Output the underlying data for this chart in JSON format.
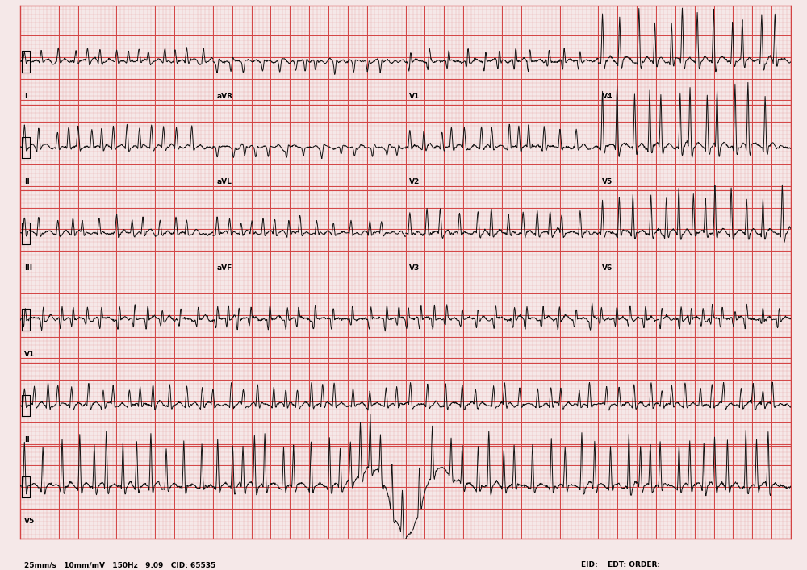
{
  "paper_color": "#f5e8e8",
  "grid_major_color": "#d44444",
  "grid_minor_color": "#e8aaaa",
  "ecg_color": "#111111",
  "border_color": "#cc3333",
  "footer_left": "25mm/s   10mm/mV   150Hz   9.09   CID: 65535",
  "footer_right": "EID:    EDT: ORDER:",
  "fig_width": 10.0,
  "fig_height": 7.07,
  "dpi": 100,
  "x_max": 200.0,
  "y_max": 120.0,
  "n_rows": 6,
  "row_labels": [
    [
      "I",
      "aVR",
      "V1",
      "V4"
    ],
    [
      "II",
      "aVL",
      "V2",
      "V5"
    ],
    [
      "III",
      "aVF",
      "V3",
      "V6"
    ],
    [
      "V1"
    ],
    [
      "II"
    ],
    [
      "V5"
    ]
  ]
}
